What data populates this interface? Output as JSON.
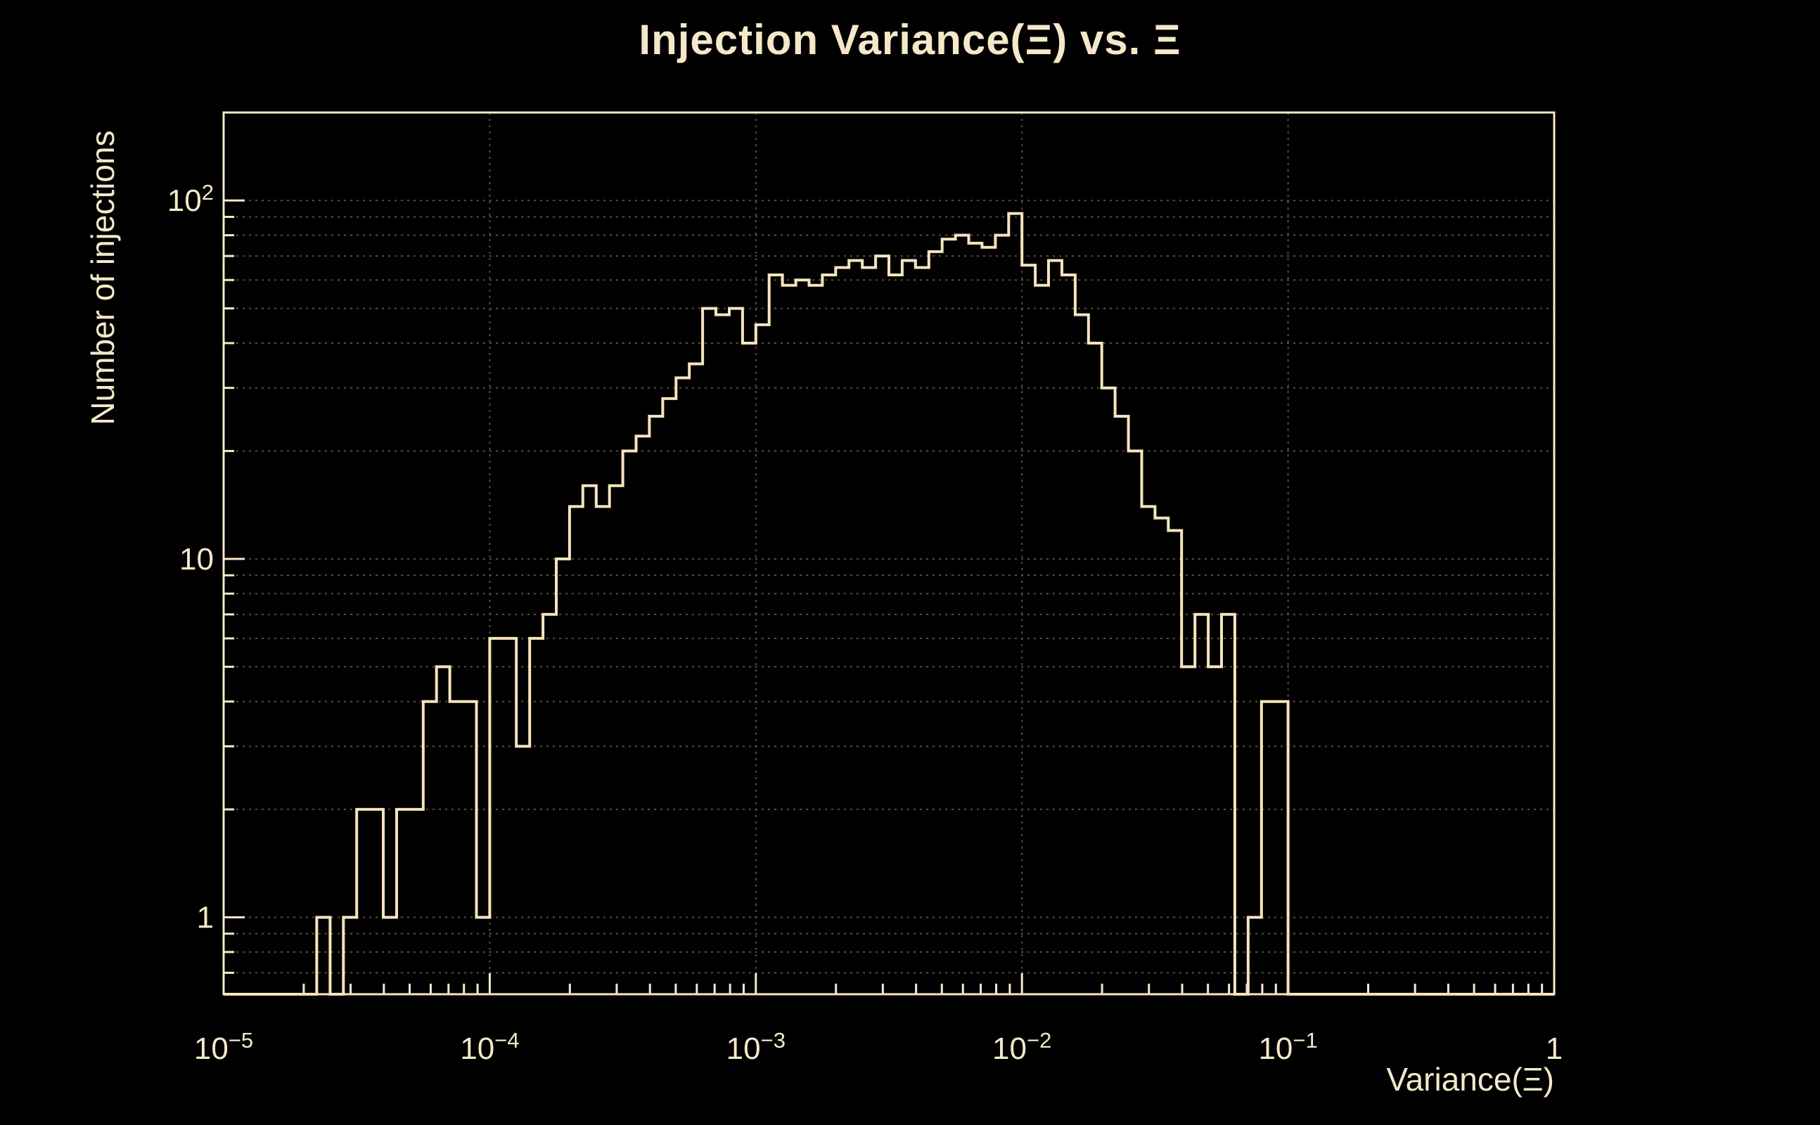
{
  "chart_data": {
    "type": "histogram",
    "title": "Injection Variance(Ξ) vs. Ξ",
    "xlabel": "Variance(Ξ)",
    "ylabel": "Number of injections",
    "x_scale": "log",
    "y_scale": "log",
    "x_min": 1e-05,
    "x_max": 1,
    "y_min": 0.61,
    "y_max": 176,
    "n_bins": 100,
    "bins_per_decade": 20,
    "bin_start_exponent": -5,
    "values": [
      0,
      0,
      0,
      0,
      0,
      0,
      0,
      1,
      0,
      1,
      2,
      2,
      1,
      2,
      2,
      4,
      5,
      4,
      4,
      1,
      6,
      6,
      3,
      6,
      7,
      10,
      14,
      16,
      14,
      16,
      20,
      22,
      25,
      28,
      32,
      35,
      50,
      48,
      50,
      40,
      45,
      62,
      58,
      60,
      58,
      62,
      65,
      68,
      65,
      70,
      62,
      68,
      65,
      72,
      78,
      80,
      76,
      74,
      80,
      92,
      66,
      58,
      68,
      62,
      48,
      40,
      30,
      25,
      20,
      14,
      13,
      12,
      5,
      7,
      5,
      7,
      0,
      1,
      4,
      4,
      0,
      0,
      0,
      0,
      0,
      0,
      0,
      0,
      0,
      0,
      0,
      0,
      0,
      0,
      0,
      0,
      0,
      0,
      0,
      0
    ],
    "x_tick_exponents": [
      -5,
      -4,
      -3,
      -2,
      -1,
      0
    ],
    "x_tick_labels": [
      "10^−5",
      "10^−4",
      "10^−3",
      "10^−2",
      "10^−1",
      "1"
    ],
    "y_ticks": [
      {
        "value": 1,
        "label": "1"
      },
      {
        "value": 10,
        "label": "10"
      },
      {
        "value": 100,
        "label": "10^2"
      }
    ],
    "grid": true,
    "legend": "none",
    "colors": {
      "background": "#000000",
      "foreground": "#f5e8c9",
      "line": "#f5e4bd",
      "grid": "#55513f"
    }
  }
}
